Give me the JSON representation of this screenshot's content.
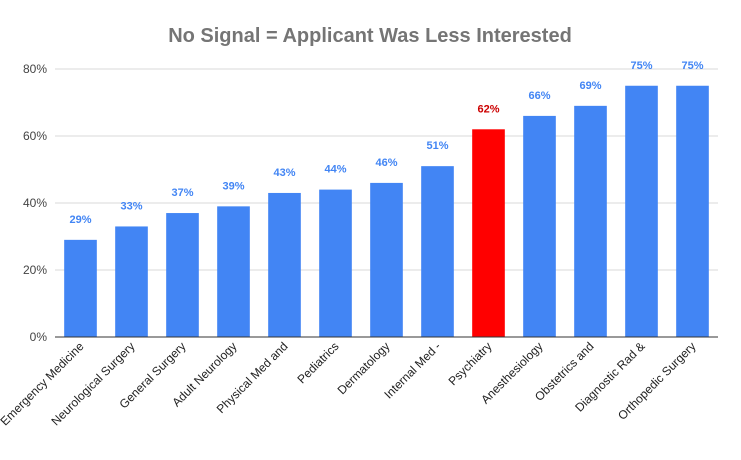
{
  "chart_data": {
    "type": "bar",
    "title": "No Signal = Applicant Was Less Interested",
    "xlabel": "",
    "ylabel": "",
    "ylim": [
      0,
      80
    ],
    "yticks": [
      0,
      20,
      40,
      60,
      80
    ],
    "ytick_labels": [
      "0%",
      "20%",
      "40%",
      "60%",
      "80%"
    ],
    "grid": true,
    "legend": "none",
    "categories": [
      "Emergency Medicine",
      "Neurological Surgery",
      "General Surgery",
      "Adult Neurology",
      "Physical Med and",
      "Pediatrics",
      "Dermatology",
      "Internal Med -",
      "Psychiatry",
      "Anesthesiology",
      "Obstetrics and",
      "Diagnostic Rad &",
      "Orthopedic Surgery"
    ],
    "values": [
      29,
      33,
      37,
      39,
      43,
      44,
      46,
      51,
      62,
      66,
      69,
      75,
      75
    ],
    "data_labels": [
      "29%",
      "33%",
      "37%",
      "39%",
      "43%",
      "44%",
      "46%",
      "51%",
      "62%",
      "66%",
      "69%",
      "75%",
      "75%"
    ],
    "colors": {
      "bar": "#4285f4",
      "highlight_bar": "#ff0000",
      "label": "#4285f4",
      "highlight_label": "#cc0000"
    },
    "highlight_category": "Psychiatry"
  }
}
